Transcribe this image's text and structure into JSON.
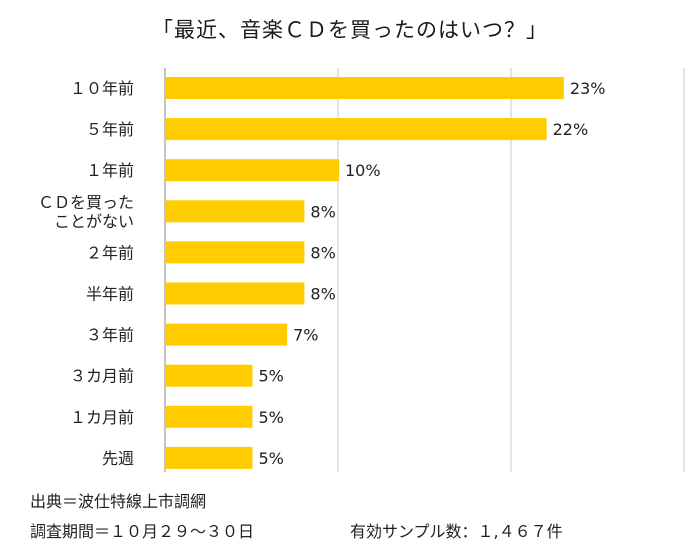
{
  "title": "「最近、音楽ＣＤを買ったのはいつ？」",
  "chart_data": {
    "type": "bar",
    "orientation": "horizontal",
    "title": "「最近、音楽ＣＤを買ったのはいつ？」",
    "categories": [
      "１０年前",
      "５年前",
      "１年前",
      "ＣＤを買った\nことがない",
      "２年前",
      "半年前",
      "３年前",
      "３カ月前",
      "１カ月前",
      "先週"
    ],
    "values": [
      23,
      22,
      10,
      8,
      8,
      8,
      7,
      5,
      5,
      5
    ],
    "value_labels": [
      "23%",
      "22%",
      "10%",
      "8%",
      "8%",
      "8%",
      "7%",
      "5%",
      "5%",
      "5%"
    ],
    "unit": "%",
    "xlim": [
      0,
      30
    ],
    "grid": true,
    "color": "#FFCC00"
  },
  "footer": {
    "source": "出典＝波仕特線上市調網",
    "period": "調査期間＝１０月２９～３０日",
    "sample": "有効サンプル数：１,４６７件"
  }
}
